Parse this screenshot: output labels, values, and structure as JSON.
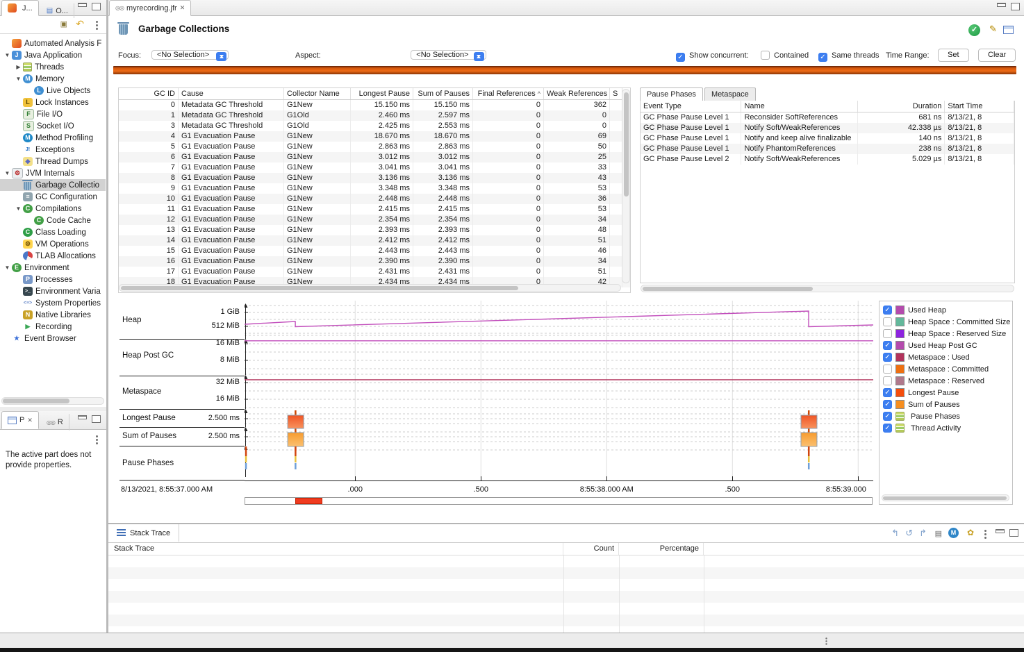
{
  "sidebar": {
    "tabs": [
      {
        "label": "J...",
        "icon": "jmc"
      },
      {
        "label": "O...",
        "icon": "outline"
      }
    ],
    "toolbar_icons": [
      "link-with-editor",
      "collapse-back",
      "view-menu"
    ],
    "tree": [
      {
        "label": "Automated Analysis F",
        "icon": "flame",
        "depth": 1,
        "arrow": null
      },
      {
        "label": "Java Application",
        "icon": "java-app",
        "depth": 1,
        "arrow": "down"
      },
      {
        "label": "Threads",
        "icon": "threads",
        "depth": 2,
        "arrow": "right"
      },
      {
        "label": "Memory",
        "icon": "memory",
        "depth": 2,
        "arrow": "down"
      },
      {
        "label": "Live Objects",
        "icon": "live-objects",
        "depth": 3,
        "arrow": null
      },
      {
        "label": "Lock Instances",
        "icon": "lock-instances",
        "depth": 2,
        "arrow": null
      },
      {
        "label": "File I/O",
        "icon": "file-io",
        "depth": 2,
        "arrow": null
      },
      {
        "label": "Socket I/O",
        "icon": "socket-io",
        "depth": 2,
        "arrow": null
      },
      {
        "label": "Method Profiling",
        "icon": "method-profiling",
        "depth": 2,
        "arrow": null
      },
      {
        "label": "Exceptions",
        "icon": "exceptions",
        "depth": 2,
        "arrow": null
      },
      {
        "label": "Thread Dumps",
        "icon": "thread-dumps",
        "depth": 2,
        "arrow": null
      },
      {
        "label": "JVM Internals",
        "icon": "jvm-internals",
        "depth": 1,
        "arrow": "down"
      },
      {
        "label": "Garbage Collectio",
        "icon": "garbage-collections",
        "depth": 2,
        "arrow": null,
        "selected": true
      },
      {
        "label": "GC Configuration",
        "icon": "gc-configuration",
        "depth": 2,
        "arrow": null
      },
      {
        "label": "Compilations",
        "icon": "compilations",
        "depth": 2,
        "arrow": "down"
      },
      {
        "label": "Code Cache",
        "icon": "code-cache",
        "depth": 3,
        "arrow": null
      },
      {
        "label": "Class Loading",
        "icon": "class-loading",
        "depth": 2,
        "arrow": null
      },
      {
        "label": "VM Operations",
        "icon": "vm-operations",
        "depth": 2,
        "arrow": null
      },
      {
        "label": "TLAB Allocations",
        "icon": "tlab-allocations",
        "depth": 2,
        "arrow": null
      },
      {
        "label": "Environment",
        "icon": "environment",
        "depth": 1,
        "arrow": "down"
      },
      {
        "label": "Processes",
        "icon": "processes",
        "depth": 2,
        "arrow": null
      },
      {
        "label": "Environment Varia",
        "icon": "environment-variables",
        "depth": 2,
        "arrow": null
      },
      {
        "label": "System Properties",
        "icon": "system-properties",
        "depth": 2,
        "arrow": null
      },
      {
        "label": "Native Libraries",
        "icon": "native-libraries",
        "depth": 2,
        "arrow": null
      },
      {
        "label": "Recording",
        "icon": "recording",
        "depth": 2,
        "arrow": null
      },
      {
        "label": "Event Browser",
        "icon": "event-browser",
        "depth": 1,
        "arrow": null
      }
    ]
  },
  "properties_panel": {
    "tabs": [
      {
        "label": "P",
        "icon": "properties-table"
      },
      {
        "label": "R",
        "icon": "recording-file"
      }
    ],
    "toolbar_icons": [
      "pin-view",
      "view-menu"
    ],
    "message": "The active part does not provide properties."
  },
  "editor": {
    "tab_label": "myrecording.jfr",
    "page_title": "Garbage Collections",
    "header_icons": [
      "success-check",
      "edit-rules",
      "results-table"
    ],
    "controls": {
      "focus_label": "Focus:",
      "focus_value": "<No Selection>",
      "aspect_label": "Aspect:",
      "aspect_value": "<No Selection>",
      "show_concurrent_label": "Show concurrent:",
      "show_concurrent_checked": true,
      "contained_label": "Contained",
      "contained_checked": false,
      "same_threads_label": "Same threads",
      "same_threads_checked": true,
      "time_range_label": "Time Range:",
      "set_button": "Set",
      "clear_button": "Clear"
    }
  },
  "gc_table": {
    "columns": [
      {
        "label": "GC ID",
        "align": "right"
      },
      {
        "label": "Cause",
        "align": "left"
      },
      {
        "label": "Collector Name",
        "align": "left"
      },
      {
        "label": "Longest Pause",
        "align": "right"
      },
      {
        "label": "Sum of Pauses",
        "align": "right"
      },
      {
        "label": "Final References",
        "align": "right",
        "sorted": "asc"
      },
      {
        "label": "Weak References",
        "align": "right"
      },
      {
        "label": "S",
        "align": "left"
      }
    ],
    "rows": [
      [
        "0",
        "Metadata GC Threshold",
        "G1New",
        "15.150 ms",
        "15.150 ms",
        "0",
        "362",
        ""
      ],
      [
        "1",
        "Metadata GC Threshold",
        "G1Old",
        "2.460 ms",
        "2.597 ms",
        "0",
        "0",
        ""
      ],
      [
        "3",
        "Metadata GC Threshold",
        "G1Old",
        "2.425 ms",
        "2.553 ms",
        "0",
        "0",
        ""
      ],
      [
        "4",
        "G1 Evacuation Pause",
        "G1New",
        "18.670 ms",
        "18.670 ms",
        "0",
        "69",
        ""
      ],
      [
        "5",
        "G1 Evacuation Pause",
        "G1New",
        "2.863 ms",
        "2.863 ms",
        "0",
        "50",
        ""
      ],
      [
        "6",
        "G1 Evacuation Pause",
        "G1New",
        "3.012 ms",
        "3.012 ms",
        "0",
        "25",
        ""
      ],
      [
        "7",
        "G1 Evacuation Pause",
        "G1New",
        "3.041 ms",
        "3.041 ms",
        "0",
        "33",
        ""
      ],
      [
        "8",
        "G1 Evacuation Pause",
        "G1New",
        "3.136 ms",
        "3.136 ms",
        "0",
        "43",
        ""
      ],
      [
        "9",
        "G1 Evacuation Pause",
        "G1New",
        "3.348 ms",
        "3.348 ms",
        "0",
        "53",
        ""
      ],
      [
        "10",
        "G1 Evacuation Pause",
        "G1New",
        "2.448 ms",
        "2.448 ms",
        "0",
        "36",
        ""
      ],
      [
        "11",
        "G1 Evacuation Pause",
        "G1New",
        "2.415 ms",
        "2.415 ms",
        "0",
        "53",
        ""
      ],
      [
        "12",
        "G1 Evacuation Pause",
        "G1New",
        "2.354 ms",
        "2.354 ms",
        "0",
        "34",
        ""
      ],
      [
        "13",
        "G1 Evacuation Pause",
        "G1New",
        "2.393 ms",
        "2.393 ms",
        "0",
        "48",
        ""
      ],
      [
        "14",
        "G1 Evacuation Pause",
        "G1New",
        "2.412 ms",
        "2.412 ms",
        "0",
        "51",
        ""
      ],
      [
        "15",
        "G1 Evacuation Pause",
        "G1New",
        "2.443 ms",
        "2.443 ms",
        "0",
        "46",
        ""
      ],
      [
        "16",
        "G1 Evacuation Pause",
        "G1New",
        "2.390 ms",
        "2.390 ms",
        "0",
        "34",
        ""
      ],
      [
        "17",
        "G1 Evacuation Pause",
        "G1New",
        "2.431 ms",
        "2.431 ms",
        "0",
        "51",
        ""
      ],
      [
        "18",
        "G1 Evacuation Pause",
        "G1New",
        "2.434 ms",
        "2.434 ms",
        "0",
        "42",
        ""
      ]
    ]
  },
  "phases_panel": {
    "tabs": [
      "Pause Phases",
      "Metaspace"
    ],
    "columns": [
      "Event Type",
      "Name",
      "Duration",
      "Start Time"
    ],
    "rows": [
      [
        "GC Phase Pause Level 1",
        "Reconsider SoftReferences",
        "681 ns",
        "8/13/21, 8"
      ],
      [
        "GC Phase Pause Level 1",
        "Notify Soft/WeakReferences",
        "42.338 µs",
        "8/13/21, 8"
      ],
      [
        "GC Phase Pause Level 1",
        "Notify and keep alive finalizable",
        "140 ns",
        "8/13/21, 8"
      ],
      [
        "GC Phase Pause Level 1",
        "Notify PhantomReferences",
        "238 ns",
        "8/13/21, 8"
      ],
      [
        "GC Phase Pause Level 2",
        "Notify Soft/WeakReferences",
        "5.029 µs",
        "8/13/21, 8"
      ]
    ]
  },
  "chart_data": {
    "type": "line",
    "start_label": "8/13/2021, 8:55:37.000 AM",
    "time_domain_s": [
      36.56,
      39.06
    ],
    "x_ticks": [
      {
        "t": 37.0,
        "label": ".000"
      },
      {
        "t": 37.5,
        "label": ".500"
      },
      {
        "t": 38.0,
        "label": "8:55:38.000 AM"
      },
      {
        "t": 38.5,
        "label": ".500"
      },
      {
        "t": 39.0,
        "label": "8:55:39.000"
      }
    ],
    "lanes": [
      {
        "label": "Heap",
        "tick_labels": [
          "1 GiB",
          "512 MiB"
        ]
      },
      {
        "label": "Heap Post GC",
        "tick_labels": [
          "16 MiB",
          "8 MiB"
        ]
      },
      {
        "label": "Metaspace",
        "tick_labels": [
          "32 MiB",
          "16 MiB"
        ]
      },
      {
        "label": "Longest Pause",
        "tick_labels": [
          "2.500 ms"
        ]
      },
      {
        "label": "Sum of Pauses",
        "tick_labels": [
          "2.500 ms"
        ]
      },
      {
        "label": "Pause Phases",
        "tick_labels": []
      }
    ],
    "series": [
      {
        "name": "Used Heap",
        "lane": 0,
        "unit": "MiB",
        "color": "#c24fbc",
        "points": [
          [
            36.56,
            590
          ],
          [
            36.762,
            690
          ],
          [
            36.762,
            500
          ],
          [
            38.803,
            1075
          ],
          [
            38.803,
            500
          ],
          [
            39.06,
            563
          ]
        ]
      },
      {
        "name": "Used Heap Post GC",
        "lane": 1,
        "unit": "MiB",
        "color": "#c24fbc",
        "points": [
          [
            36.56,
            17.4
          ],
          [
            39.06,
            17.4
          ]
        ]
      },
      {
        "name": "Metaspace : Used",
        "lane": 2,
        "unit": "MiB",
        "color": "#b2335c",
        "points": [
          [
            36.56,
            34.7
          ],
          [
            39.06,
            34.7
          ]
        ]
      }
    ],
    "gc_events": [
      {
        "t": 36.565,
        "partial": true
      },
      {
        "t": 36.762,
        "longest_pause_ms": 18.67,
        "sum_of_pauses_ms": 18.67
      },
      {
        "t": 38.803,
        "longest_pause_ms": 15.15,
        "sum_of_pauses_ms": 15.15
      }
    ],
    "selection": {
      "from_s": 36.76,
      "to_s": 36.86
    }
  },
  "legend": {
    "items": [
      {
        "label": "Used Heap",
        "checked": true,
        "swatch": "#b44bad"
      },
      {
        "label": "Heap Space : Committed Size",
        "checked": false,
        "swatch": "#63b89b"
      },
      {
        "label": "Heap Space : Reserved Size",
        "checked": false,
        "swatch": "#8d23e0"
      },
      {
        "label": "Used Heap Post GC",
        "checked": true,
        "swatch": "#b44bad"
      },
      {
        "label": "Metaspace : Used",
        "checked": true,
        "swatch": "#b2335c"
      },
      {
        "label": "Metaspace : Committed",
        "checked": false,
        "swatch": "#ee7011"
      },
      {
        "label": "Metaspace : Reserved",
        "checked": false,
        "swatch": "#b0798c"
      },
      {
        "label": "Longest Pause",
        "checked": true,
        "swatch": "#f44d0c"
      },
      {
        "label": "Sum of Pauses",
        "checked": true,
        "swatch": "#f68e20"
      },
      {
        "label": "Pause Phases",
        "checked": true,
        "swatch": null,
        "icon": "stacked-rows"
      },
      {
        "label": "Thread Activity",
        "checked": true,
        "swatch": null,
        "icon": "stacked-rows"
      }
    ]
  },
  "stack_trace": {
    "title": "Stack Trace",
    "columns": [
      "Stack Trace",
      "Count",
      "Percentage"
    ],
    "toolbar_icons": [
      "goto-previous-frame",
      "reset-navigation",
      "goto-next-frame",
      "tree-layout",
      "method-formatting",
      "package-grouping",
      "view-menu",
      "minimize",
      "maximize"
    ]
  }
}
